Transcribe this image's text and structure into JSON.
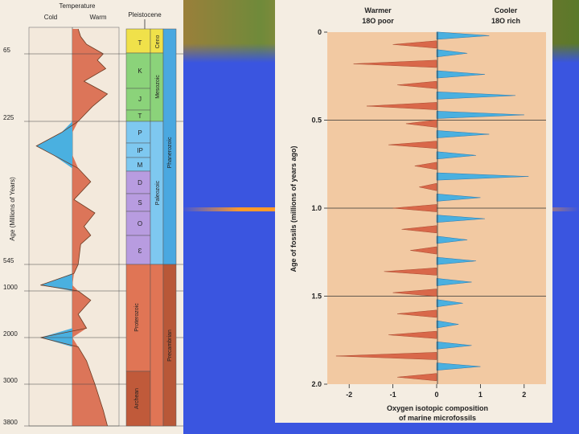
{
  "colors": {
    "background": "#3a55e0",
    "warm": "#d9684a",
    "cool": "#4ab0e0",
    "plot_bg": "#f2c9a2",
    "paper": "#f4ede2"
  },
  "left": {
    "temperature_title": "Temperature",
    "cold_label": "Cold",
    "warm_label": "Warm",
    "pleistocene_label": "Pleistocene",
    "y_axis_label": "Age (Millions of Years)",
    "ticks": [
      "65",
      "225",
      "545",
      "1000",
      "2000",
      "3000",
      "3800"
    ],
    "periods": [
      "T",
      "K",
      "J",
      "T",
      "P",
      "IP",
      "M",
      "D",
      "S",
      "O",
      "Ɛ"
    ],
    "eras": [
      "Ceno",
      "Mesozoic",
      "Paleozoic",
      "Proterozoic",
      "Archean"
    ],
    "eons": [
      "Phanerozoic",
      "Precambrian"
    ]
  },
  "right": {
    "warmer_title": "Warmer",
    "warmer_sub": "18O poor",
    "cooler_title": "Cooler",
    "cooler_sub": "18O rich",
    "y_axis_label": "Age of fossils (millions of years ago)",
    "x_axis_label_line1": "Oxygen isotopic composition",
    "x_axis_label_line2": "of marine microfossils"
  },
  "chart_data": [
    {
      "type": "line",
      "title": "Temperature",
      "xlabel": "Temperature",
      "ylabel": "Age (Millions of Years)",
      "x_categories": [
        "Cold",
        "Warm"
      ],
      "y_ticks": [
        65,
        225,
        545,
        1000,
        2000,
        3000,
        3800
      ],
      "ylim": [
        0,
        3800
      ],
      "series": [
        {
          "age": [
            0,
            20,
            40,
            65,
            80,
            100,
            130,
            160,
            190,
            225,
            250,
            280,
            300,
            330,
            360,
            400,
            430,
            460,
            480,
            500,
            545,
            700,
            900,
            1000,
            1200,
            1500,
            1800,
            2000,
            2200,
            2500,
            3000,
            3500,
            3800
          ],
          "relative_temperature": [
            0.55,
            0.58,
            0.65,
            0.85,
            0.78,
            0.88,
            0.62,
            0.9,
            0.72,
            0.55,
            0.35,
            0.05,
            0.25,
            0.55,
            0.7,
            0.5,
            0.75,
            0.62,
            0.7,
            0.58,
            0.55,
            0.5,
            0.1,
            0.55,
            0.7,
            0.55,
            0.65,
            0.1,
            0.55,
            0.65,
            0.75,
            0.85,
            0.9
          ]
        }
      ]
    },
    {
      "type": "bar",
      "title": "",
      "xlabel": "Oxygen isotopic composition of marine microfossils",
      "ylabel": "Age of fossils (millions of years ago)",
      "xlim": [
        -2.5,
        2.5
      ],
      "ylim": [
        0,
        2.0
      ],
      "x_ticks": [
        "-2",
        "-1",
        "0",
        "1",
        "2"
      ],
      "y_ticks": [
        "0",
        "0.5",
        "1.0",
        "1.5",
        "2.0"
      ],
      "orientation": "horizontal",
      "age": [
        0.02,
        0.07,
        0.12,
        0.18,
        0.24,
        0.3,
        0.36,
        0.42,
        0.47,
        0.52,
        0.58,
        0.64,
        0.7,
        0.76,
        0.82,
        0.88,
        0.94,
        1.0,
        1.06,
        1.12,
        1.18,
        1.24,
        1.3,
        1.36,
        1.42,
        1.48,
        1.54,
        1.6,
        1.66,
        1.72,
        1.78,
        1.84,
        1.9,
        1.96
      ],
      "values": [
        1.2,
        -1.0,
        0.7,
        -1.9,
        1.1,
        -0.9,
        1.8,
        -1.6,
        2.0,
        -0.7,
        1.2,
        -1.1,
        0.9,
        -0.5,
        2.1,
        -0.4,
        1.0,
        -1.0,
        1.1,
        -0.8,
        0.7,
        -0.6,
        0.9,
        -1.2,
        0.8,
        -1.0,
        0.6,
        -0.9,
        0.5,
        -1.1,
        0.8,
        -2.3,
        1.0,
        -0.9
      ]
    }
  ]
}
